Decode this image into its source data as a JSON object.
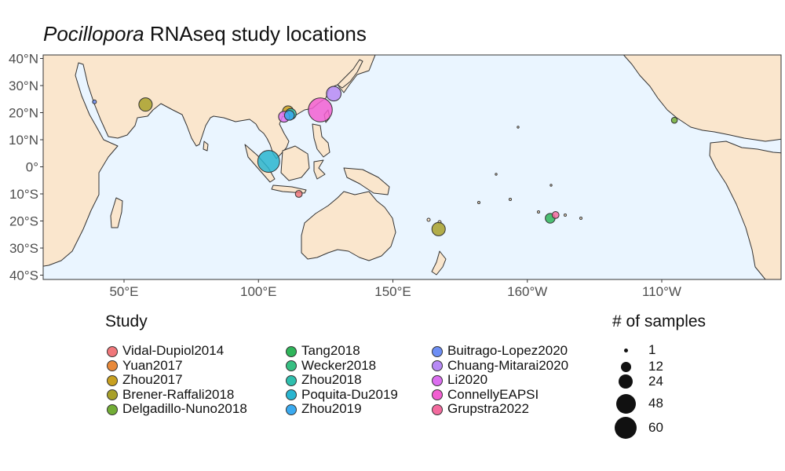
{
  "title": {
    "genus": "Pocillopora",
    "rest": " RNAseq study locations"
  },
  "colors": {
    "ocean": "#eaf5ff",
    "land": "#fae6cd",
    "border": "#333333"
  },
  "map": {
    "lat_ticks": [
      "40°N",
      "30°N",
      "20°N",
      "10°N",
      "0°",
      "10°S",
      "20°S",
      "30°S",
      "40°S"
    ],
    "lon_ticks": [
      "50°E",
      "100°E",
      "150°E",
      "160°W",
      "110°W"
    ]
  },
  "legend_study": {
    "title": "Study",
    "items": [
      {
        "label": "Vidal-Dupiol2014",
        "color": "#f0777a"
      },
      {
        "label": "Yuan2017",
        "color": "#e8893a"
      },
      {
        "label": "Zhou2017",
        "color": "#c8a020"
      },
      {
        "label": "Brener-Raffali2018",
        "color": "#a8a02a"
      },
      {
        "label": "Delgadillo-Nuno2018",
        "color": "#72ad36"
      },
      {
        "label": "Tang2018",
        "color": "#2fb55a"
      },
      {
        "label": "Wecker2018",
        "color": "#37bf82"
      },
      {
        "label": "Zhou2018",
        "color": "#2fbfae"
      },
      {
        "label": "Poquita-Du2019",
        "color": "#29b5d0"
      },
      {
        "label": "Zhou2019",
        "color": "#3aaaf0"
      },
      {
        "label": "Buitrago-Lopez2020",
        "color": "#6d8ef5"
      },
      {
        "label": "Chuang-Mitarai2020",
        "color": "#b78af5"
      },
      {
        "label": "Li2020",
        "color": "#dc6ef0"
      },
      {
        "label": "ConnellyEAPSI",
        "color": "#f25fd2"
      },
      {
        "label": "Grupstra2022",
        "color": "#f36a9e"
      }
    ]
  },
  "legend_size": {
    "title": "# of samples",
    "items": [
      {
        "label": "1",
        "value": 1
      },
      {
        "label": "12",
        "value": 12
      },
      {
        "label": "24",
        "value": 24
      },
      {
        "label": "48",
        "value": 48
      },
      {
        "label": "60",
        "value": 60
      }
    ]
  },
  "study_sites": [
    {
      "study": "Vidal-Dupiol2014",
      "lon": 115,
      "lat": -10,
      "samples": 4
    },
    {
      "study": "Grupstra2022",
      "lon": -149.5,
      "lat": -17.8,
      "samples": 4
    },
    {
      "study": "Tang2018",
      "lon": -151.5,
      "lat": -19,
      "samples": 8
    },
    {
      "study": "Brener-Raffali2018",
      "lon": 58,
      "lat": 23,
      "samples": 15
    },
    {
      "study": "Brener-Raffali2018",
      "lon": 167,
      "lat": -23,
      "samples": 15
    },
    {
      "study": "Delgadillo-Nuno2018",
      "lon": -105.3,
      "lat": 17.2,
      "samples": 3
    },
    {
      "study": "Buitrago-Lopez2020",
      "lon": 39,
      "lat": 24,
      "samples": 1
    },
    {
      "study": "Chuang-Mitarai2020",
      "lon": 128,
      "lat": 27,
      "samples": 18
    },
    {
      "study": "ConnellyEAPSI",
      "lon": 123,
      "lat": 21,
      "samples": 48
    },
    {
      "study": "Poquita-Du2019",
      "lon": 103.8,
      "lat": 2,
      "samples": 40
    },
    {
      "study": "Zhou2017",
      "lon": 111,
      "lat": 20.5,
      "samples": 10
    },
    {
      "study": "Zhou2018",
      "lon": 112,
      "lat": 19.5,
      "samples": 10
    },
    {
      "study": "Zhou2019",
      "lon": 111.5,
      "lat": 19,
      "samples": 8
    },
    {
      "study": "Li2020",
      "lon": 109.5,
      "lat": 18.5,
      "samples": 10
    }
  ]
}
